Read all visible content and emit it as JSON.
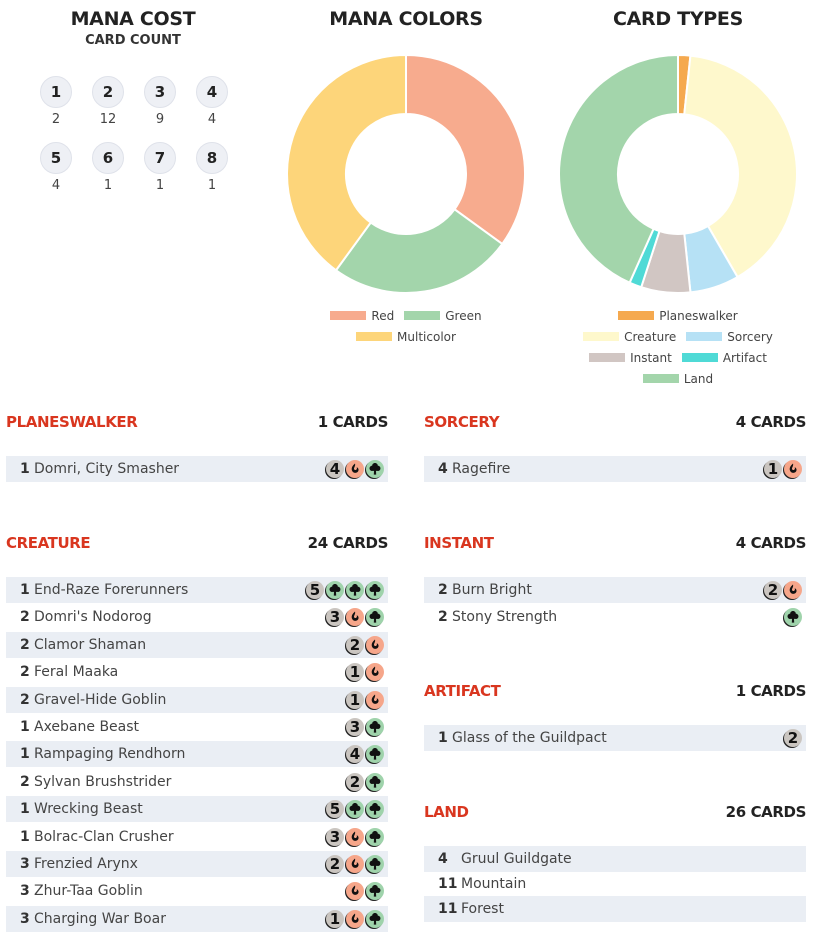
{
  "mana_cost": {
    "title": "MANA COST",
    "subtitle": "CARD COUNT",
    "items": [
      {
        "cost": "1",
        "count": "2"
      },
      {
        "cost": "2",
        "count": "12"
      },
      {
        "cost": "3",
        "count": "9"
      },
      {
        "cost": "4",
        "count": "4"
      },
      {
        "cost": "5",
        "count": "4"
      },
      {
        "cost": "6",
        "count": "1"
      },
      {
        "cost": "7",
        "count": "1"
      },
      {
        "cost": "8",
        "count": "1"
      }
    ]
  },
  "mana_colors": {
    "title": "MANA COLORS",
    "slices": [
      {
        "name": "Red",
        "value": 35,
        "color": "#f7ab8e"
      },
      {
        "name": "Green",
        "value": 25,
        "color": "#a3d5ab"
      },
      {
        "name": "Multicolor",
        "value": 40,
        "color": "#fdd57a"
      }
    ]
  },
  "card_types": {
    "title": "CARD TYPES",
    "slices": [
      {
        "name": "Planeswalker",
        "value": 1,
        "color": "#f5a94f"
      },
      {
        "name": "Creature",
        "value": 24,
        "color": "#fef8cc"
      },
      {
        "name": "Sorcery",
        "value": 4,
        "color": "#b6e1f5"
      },
      {
        "name": "Instant",
        "value": 4,
        "color": "#d1c6c3"
      },
      {
        "name": "Artifact",
        "value": 1,
        "color": "#4fdad6"
      },
      {
        "name": "Land",
        "value": 26,
        "color": "#a3d5ab"
      }
    ]
  },
  "sections": {
    "planeswalker": {
      "name": "PLANESWALKER",
      "count": "1 CARDS",
      "cards": [
        {
          "qty": "1",
          "name": "Domri, City Smasher",
          "cost": [
            "4",
            "R",
            "G"
          ]
        }
      ]
    },
    "creature": {
      "name": "CREATURE",
      "count": "24 CARDS",
      "cards": [
        {
          "qty": "1",
          "name": "End-Raze Forerunners",
          "cost": [
            "5",
            "G",
            "G",
            "G"
          ]
        },
        {
          "qty": "2",
          "name": "Domri's Nodorog",
          "cost": [
            "3",
            "R",
            "G"
          ]
        },
        {
          "qty": "2",
          "name": "Clamor Shaman",
          "cost": [
            "2",
            "R"
          ]
        },
        {
          "qty": "2",
          "name": "Feral Maaka",
          "cost": [
            "1",
            "R"
          ]
        },
        {
          "qty": "2",
          "name": "Gravel-Hide Goblin",
          "cost": [
            "1",
            "R"
          ]
        },
        {
          "qty": "1",
          "name": "Axebane Beast",
          "cost": [
            "3",
            "G"
          ]
        },
        {
          "qty": "1",
          "name": "Rampaging Rendhorn",
          "cost": [
            "4",
            "G"
          ]
        },
        {
          "qty": "2",
          "name": "Sylvan Brushstrider",
          "cost": [
            "2",
            "G"
          ]
        },
        {
          "qty": "1",
          "name": "Wrecking Beast",
          "cost": [
            "5",
            "G",
            "G"
          ]
        },
        {
          "qty": "1",
          "name": "Bolrac-Clan Crusher",
          "cost": [
            "3",
            "R",
            "G"
          ]
        },
        {
          "qty": "3",
          "name": "Frenzied Arynx",
          "cost": [
            "2",
            "R",
            "G"
          ]
        },
        {
          "qty": "3",
          "name": "Zhur-Taa Goblin",
          "cost": [
            "R",
            "G"
          ]
        },
        {
          "qty": "3",
          "name": "Charging War Boar",
          "cost": [
            "1",
            "R",
            "G"
          ]
        }
      ]
    },
    "sorcery": {
      "name": "SORCERY",
      "count": "4 CARDS",
      "cards": [
        {
          "qty": "4",
          "name": "Ragefire",
          "cost": [
            "1",
            "R"
          ]
        }
      ]
    },
    "instant": {
      "name": "INSTANT",
      "count": "4 CARDS",
      "cards": [
        {
          "qty": "2",
          "name": "Burn Bright",
          "cost": [
            "2",
            "R"
          ]
        },
        {
          "qty": "2",
          "name": "Stony Strength",
          "cost": [
            "G"
          ]
        }
      ]
    },
    "artifact": {
      "name": "ARTIFACT",
      "count": "1 CARDS",
      "cards": [
        {
          "qty": "1",
          "name": "Glass of the Guildpact",
          "cost": [
            "2"
          ]
        }
      ]
    },
    "land": {
      "name": "LAND",
      "count": "26 CARDS",
      "cards": [
        {
          "qty": "4",
          "name": "Gruul Guildgate",
          "cost": []
        },
        {
          "qty": "11",
          "name": "Mountain",
          "cost": []
        },
        {
          "qty": "11",
          "name": "Forest",
          "cost": []
        }
      ]
    }
  }
}
